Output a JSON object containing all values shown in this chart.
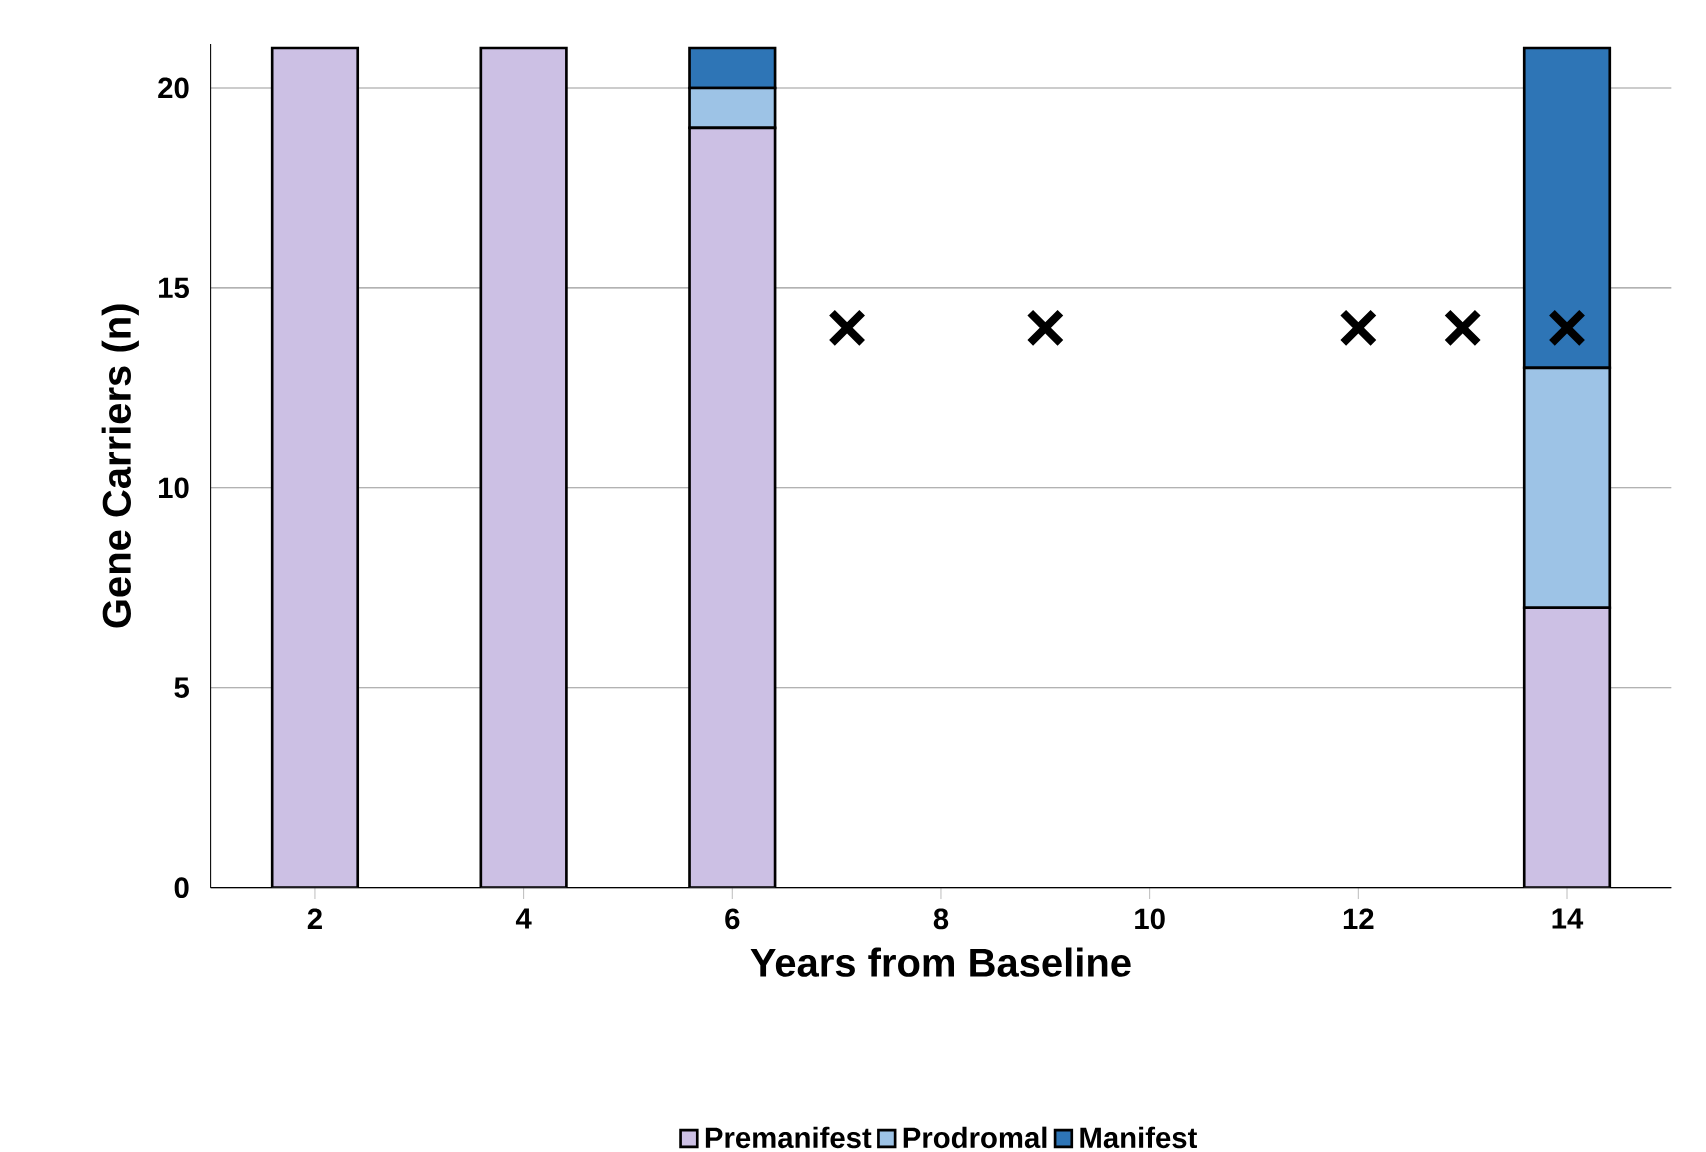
{
  "chart_data": {
    "type": "bar",
    "stacked": true,
    "xlabel": "Years from Baseline",
    "ylabel": "Gene Carriers (n)",
    "x": [
      2,
      4,
      6,
      14
    ],
    "series": [
      {
        "name": "Premanifest",
        "color": "#ccc0e4",
        "values": [
          21,
          21,
          19,
          7
        ]
      },
      {
        "name": "Prodromal",
        "color": "#9dc3e6",
        "values": [
          0,
          0,
          1,
          6
        ]
      },
      {
        "name": "Manifest",
        "color": "#2e75b6",
        "values": [
          0,
          0,
          1,
          8
        ]
      },
      {
        "type": "scatter",
        "marker": "cross",
        "color": "#000000",
        "x": [
          7.1,
          9,
          12,
          13,
          14
        ],
        "values": [
          14,
          14,
          14,
          14,
          14
        ]
      }
    ],
    "xlim": [
      1,
      15
    ],
    "ylim": [
      0,
      21.1
    ],
    "xticks": [
      2,
      4,
      6,
      8,
      10,
      12,
      14
    ],
    "yticks": [
      0,
      5,
      10,
      15,
      20
    ],
    "grid": "y",
    "legend": "bottom"
  }
}
